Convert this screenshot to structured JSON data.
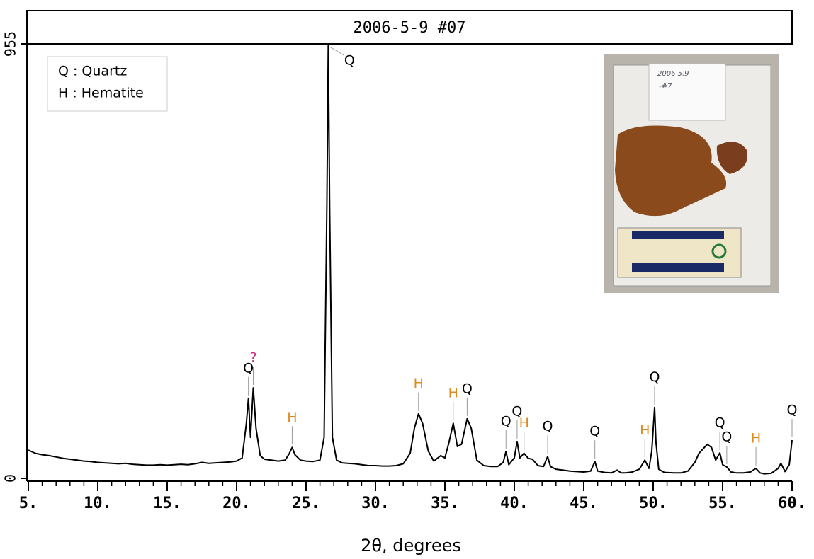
{
  "chart_data": {
    "type": "line",
    "title": "2006-5-9 #07",
    "x_label": "2θ, degrees",
    "legend_lines": [
      "Q : Quartz",
      "H : Hematite"
    ],
    "inset_note": [
      "2006 5.9",
      "-#7"
    ],
    "color": "#000000",
    "xlim": [
      5,
      60
    ],
    "ylim": [
      0,
      955
    ],
    "xticks": [
      {
        "value": 5,
        "label": "5."
      },
      {
        "value": 10,
        "label": "10."
      },
      {
        "value": 15,
        "label": "15."
      },
      {
        "value": 20,
        "label": "20."
      },
      {
        "value": 25,
        "label": "25."
      },
      {
        "value": 30,
        "label": "30."
      },
      {
        "value": 35,
        "label": "35."
      },
      {
        "value": 40,
        "label": "40."
      },
      {
        "value": 45,
        "label": "45."
      },
      {
        "value": 50,
        "label": "50."
      },
      {
        "value": 55,
        "label": "55."
      },
      {
        "value": 60,
        "label": "60."
      }
    ],
    "yticks": [
      0,
      955
    ],
    "x": [
      5,
      5.5,
      6,
      6.5,
      7,
      7.5,
      8,
      8.5,
      9,
      9.5,
      10,
      10.5,
      11,
      11.5,
      12,
      12.5,
      13,
      13.5,
      14,
      14.5,
      15,
      15.5,
      16,
      16.5,
      17,
      17.5,
      18,
      18.5,
      19,
      19.5,
      20,
      20.4,
      20.7,
      20.85,
      21.0,
      21.2,
      21.4,
      21.7,
      22,
      22.5,
      23,
      23.5,
      23.8,
      24.0,
      24.2,
      24.6,
      25,
      25.5,
      26,
      26.3,
      26.5,
      26.6,
      26.7,
      26.9,
      27.2,
      27.6,
      28,
      28.5,
      29,
      29.5,
      30,
      30.5,
      31,
      31.5,
      32,
      32.5,
      32.8,
      33.1,
      33.4,
      33.8,
      34.2,
      34.7,
      35,
      35.3,
      35.6,
      35.9,
      36.2,
      36.6,
      36.9,
      37.3,
      37.8,
      38.3,
      38.8,
      39.2,
      39.4,
      39.6,
      40,
      40.2,
      40.4,
      40.7,
      41,
      41.3,
      41.7,
      42.1,
      42.4,
      42.6,
      43,
      43.5,
      44,
      44.5,
      45,
      45.5,
      45.8,
      46,
      46.5,
      47,
      47.4,
      47.7,
      48,
      48.5,
      49,
      49.4,
      49.7,
      49.9,
      50.1,
      50.2,
      50.4,
      50.8,
      51.5,
      52,
      52.5,
      53,
      53.3,
      53.6,
      53.9,
      54.2,
      54.5,
      54.8,
      55.0,
      55.3,
      55.6,
      56,
      56.5,
      57,
      57.4,
      57.7,
      58,
      58.5,
      59,
      59.2,
      59.5,
      59.8,
      60
    ],
    "values": [
      62,
      55,
      52,
      50,
      47,
      44,
      42,
      40,
      38,
      37,
      35,
      34,
      33,
      32,
      33,
      31,
      30,
      29,
      29,
      30,
      29,
      30,
      31,
      30,
      32,
      35,
      33,
      34,
      35,
      36,
      38,
      45,
      120,
      176,
      90,
      199,
      110,
      50,
      42,
      40,
      38,
      40,
      55,
      68,
      52,
      40,
      38,
      37,
      40,
      90,
      600,
      955,
      600,
      90,
      40,
      34,
      33,
      32,
      30,
      28,
      28,
      27,
      27,
      28,
      32,
      55,
      110,
      142,
      120,
      60,
      38,
      50,
      45,
      80,
      121,
      70,
      75,
      131,
      110,
      40,
      28,
      26,
      26,
      35,
      59,
      30,
      45,
      81,
      45,
      55,
      44,
      42,
      28,
      26,
      48,
      26,
      20,
      18,
      16,
      15,
      14,
      16,
      37,
      16,
      13,
      12,
      18,
      12,
      12,
      14,
      20,
      40,
      22,
      60,
      156,
      80,
      20,
      13,
      12,
      12,
      16,
      35,
      55,
      65,
      75,
      68,
      40,
      56,
      30,
      25,
      14,
      12,
      12,
      14,
      22,
      12,
      10,
      11,
      22,
      33,
      15,
      30,
      84
    ],
    "annotations": [
      {
        "text": "Q",
        "x": 20.85,
        "color": "#000000"
      },
      {
        "text": "?",
        "x": 21.2,
        "color": "#c0307a"
      },
      {
        "text": "H",
        "x": 24.0,
        "color": "#e08a1e"
      },
      {
        "text": "Q",
        "x": 26.6,
        "color": "#000000"
      },
      {
        "text": "H",
        "x": 33.1,
        "color": "#e08a1e"
      },
      {
        "text": "H",
        "x": 35.6,
        "color": "#e08a1e"
      },
      {
        "text": "Q",
        "x": 36.6,
        "color": "#000000"
      },
      {
        "text": "Q",
        "x": 39.4,
        "color": "#000000"
      },
      {
        "text": "Q",
        "x": 40.2,
        "color": "#000000"
      },
      {
        "text": "H",
        "x": 40.7,
        "color": "#e08a1e"
      },
      {
        "text": "Q",
        "x": 42.4,
        "color": "#000000"
      },
      {
        "text": "Q",
        "x": 45.8,
        "color": "#000000"
      },
      {
        "text": "H",
        "x": 49.4,
        "color": "#e08a1e"
      },
      {
        "text": "Q",
        "x": 50.1,
        "color": "#000000"
      },
      {
        "text": "Q",
        "x": 54.8,
        "color": "#000000"
      },
      {
        "text": "Q",
        "x": 55.3,
        "color": "#000000"
      },
      {
        "text": "H",
        "x": 57.4,
        "color": "#e08a1e"
      },
      {
        "text": "Q",
        "x": 60,
        "color": "#000000"
      }
    ]
  }
}
